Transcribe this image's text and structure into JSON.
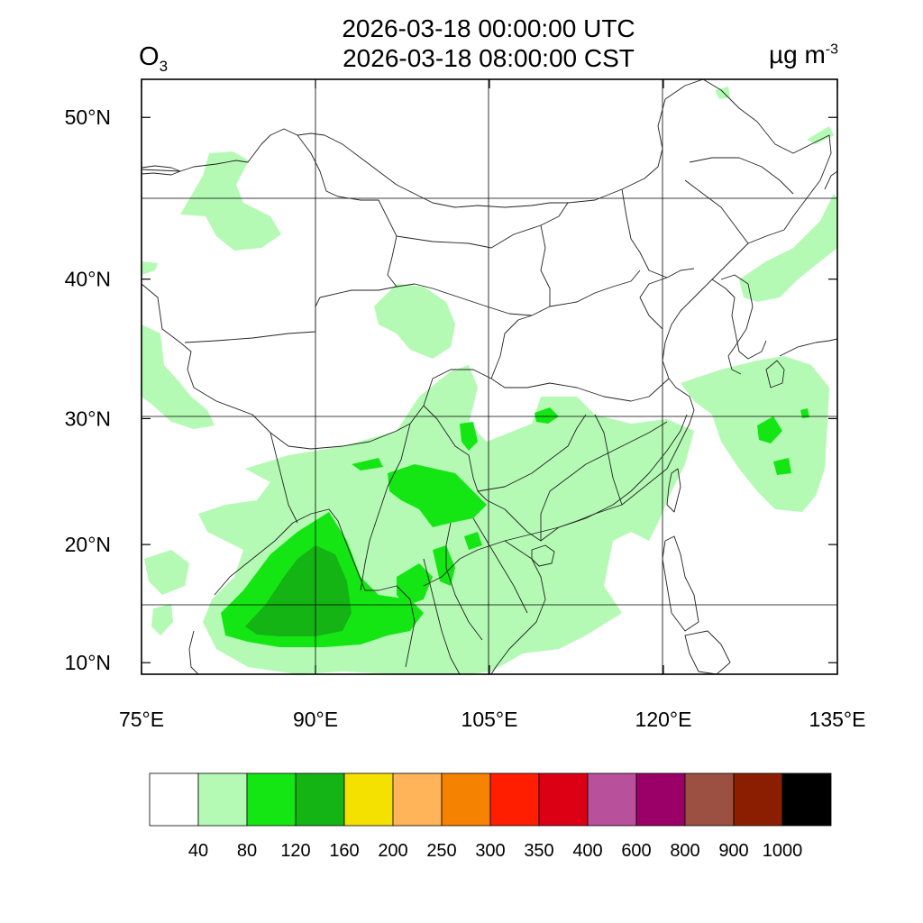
{
  "title": {
    "utc": "2026-03-18 00:00:00 UTC",
    "cst": "2026-03-18 08:00:00 CST"
  },
  "species": {
    "base": "O",
    "sub": "3"
  },
  "unit": {
    "base": "µg m",
    "sup": "-3"
  },
  "axes": {
    "lon": [
      {
        "value": 75,
        "label": "75°E"
      },
      {
        "value": 90,
        "label": "90°E"
      },
      {
        "value": 105,
        "label": "105°E"
      },
      {
        "value": 120,
        "label": "120°E"
      },
      {
        "value": 135,
        "label": "135°E"
      }
    ],
    "lat": [
      {
        "value": 10,
        "label": "10°N"
      },
      {
        "value": 20,
        "label": "20°N"
      },
      {
        "value": 30,
        "label": "30°N"
      },
      {
        "value": 40,
        "label": "40°N"
      },
      {
        "value": 50,
        "label": "50°N"
      }
    ]
  },
  "colorbar": {
    "colors": [
      "#ffffff",
      "#b4fab4",
      "#14e614",
      "#14b414",
      "#f5e100",
      "#ffb45a",
      "#f58200",
      "#ff1e00",
      "#dc0014",
      "#b9509b",
      "#9b0069",
      "#9b5041",
      "#8c1e00",
      "#000000"
    ],
    "labels": [
      "40",
      "80",
      "120",
      "160",
      "200",
      "250",
      "300",
      "350",
      "400",
      "600",
      "800",
      "900",
      "1000"
    ]
  },
  "map": {
    "land_color": "#ffffff",
    "light_green": "#b4fab4",
    "green": "#14e614",
    "dark_green": "#14b414"
  }
}
